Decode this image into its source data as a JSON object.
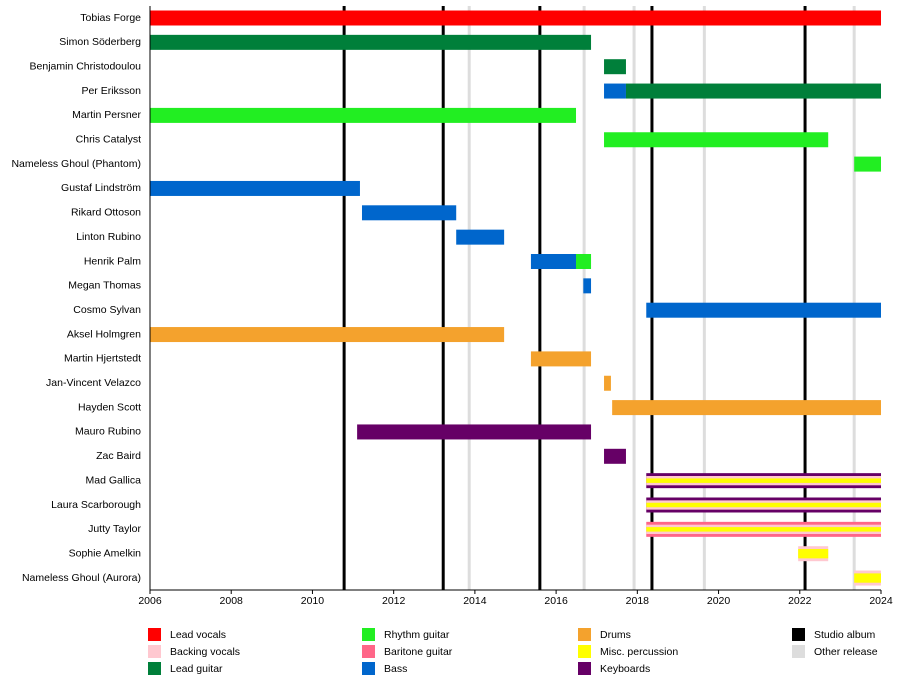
{
  "chart_data": {
    "type": "timeline",
    "xlim": [
      2006,
      2024
    ],
    "xticks": [
      2006,
      2008,
      2010,
      2012,
      2014,
      2016,
      2018,
      2020,
      2022,
      2024
    ],
    "roles": [
      {
        "name": "Lead vocals",
        "color": "#ff0000"
      },
      {
        "name": "Backing vocals",
        "color": "#ffc8d0"
      },
      {
        "name": "Lead guitar",
        "color": "#007f3a"
      },
      {
        "name": "Rhythm guitar",
        "color": "#22ee22"
      },
      {
        "name": "Baritone guitar",
        "color": "#ff6688"
      },
      {
        "name": "Bass",
        "color": "#0066cc"
      },
      {
        "name": "Drums",
        "color": "#f4a22d"
      },
      {
        "name": "Misc. percussion",
        "color": "#ffff00"
      },
      {
        "name": "Keyboards",
        "color": "#660066"
      }
    ],
    "events": [
      {
        "name": "Studio album",
        "color": "#000000",
        "dates": [
          2010.78,
          2013.22,
          2015.6,
          2018.36,
          2022.13
        ]
      },
      {
        "name": "Other release",
        "color": "#dddddd",
        "dates": [
          2013.86,
          2016.69,
          2017.92,
          2019.65,
          2023.34
        ]
      }
    ],
    "members": [
      {
        "name": "Tobias Forge",
        "bars": [
          {
            "role": "Lead vocals",
            "start": 2006,
            "end": 2024
          }
        ]
      },
      {
        "name": "Simon Söderberg",
        "bars": [
          {
            "role": "Lead guitar",
            "start": 2006,
            "end": 2016.86
          }
        ]
      },
      {
        "name": "Benjamin Christodoulou",
        "bars": [
          {
            "role": "Lead guitar",
            "start": 2017.18,
            "end": 2017.72
          }
        ]
      },
      {
        "name": "Per Eriksson",
        "bars": [
          {
            "role": "Bass",
            "start": 2017.18,
            "end": 2017.72
          },
          {
            "role": "Lead guitar",
            "start": 2017.72,
            "end": 2024
          }
        ]
      },
      {
        "name": "Martin Persner",
        "bars": [
          {
            "role": "Rhythm guitar",
            "start": 2006,
            "end": 2016.49
          }
        ]
      },
      {
        "name": "Chris Catalyst",
        "bars": [
          {
            "role": "Rhythm guitar",
            "start": 2017.18,
            "end": 2022.7
          }
        ]
      },
      {
        "name": "Nameless Ghoul (Phantom)",
        "bars": [
          {
            "role": "Rhythm guitar",
            "start": 2023.34,
            "end": 2024
          }
        ]
      },
      {
        "name": "Gustaf Lindström",
        "bars": [
          {
            "role": "Bass",
            "start": 2006,
            "end": 2011.17
          }
        ]
      },
      {
        "name": "Rikard Ottoson",
        "bars": [
          {
            "role": "Bass",
            "start": 2011.22,
            "end": 2013.54
          }
        ]
      },
      {
        "name": "Linton Rubino",
        "bars": [
          {
            "role": "Bass",
            "start": 2013.54,
            "end": 2014.72
          }
        ]
      },
      {
        "name": "Henrik Palm",
        "bars": [
          {
            "role": "Bass",
            "start": 2015.38,
            "end": 2016.49
          },
          {
            "role": "Rhythm guitar",
            "start": 2016.49,
            "end": 2016.86
          }
        ]
      },
      {
        "name": "Megan Thomas",
        "bars": [
          {
            "role": "Bass",
            "start": 2016.67,
            "end": 2016.86
          }
        ]
      },
      {
        "name": "Cosmo Sylvan",
        "bars": [
          {
            "role": "Bass",
            "start": 2018.22,
            "end": 2024
          }
        ]
      },
      {
        "name": "Aksel Holmgren",
        "bars": [
          {
            "role": "Drums",
            "start": 2006,
            "end": 2014.72
          }
        ]
      },
      {
        "name": "Martin Hjertstedt",
        "bars": [
          {
            "role": "Drums",
            "start": 2015.38,
            "end": 2016.86
          }
        ]
      },
      {
        "name": "Jan-Vincent Velazco",
        "bars": [
          {
            "role": "Drums",
            "start": 2017.18,
            "end": 2017.35
          }
        ]
      },
      {
        "name": "Hayden Scott",
        "bars": [
          {
            "role": "Drums",
            "start": 2017.38,
            "end": 2024
          }
        ]
      },
      {
        "name": "Mauro Rubino",
        "bars": [
          {
            "role": "Keyboards",
            "start": 2011.1,
            "end": 2016.86
          }
        ]
      },
      {
        "name": "Zac Baird",
        "bars": [
          {
            "role": "Keyboards",
            "start": 2017.18,
            "end": 2017.72
          }
        ]
      },
      {
        "name": "Mad Gallica",
        "bars": [
          {
            "role": "Keyboards",
            "start": 2018.22,
            "end": 2024
          },
          {
            "role": "Backing vocals",
            "start": 2018.22,
            "end": 2024
          },
          {
            "role": "Misc. percussion",
            "start": 2018.22,
            "end": 2024
          }
        ]
      },
      {
        "name": "Laura Scarborough",
        "bars": [
          {
            "role": "Keyboards",
            "start": 2018.22,
            "end": 2024
          },
          {
            "role": "Backing vocals",
            "start": 2018.22,
            "end": 2024
          },
          {
            "role": "Misc. percussion",
            "start": 2018.22,
            "end": 2024
          }
        ]
      },
      {
        "name": "Jutty Taylor",
        "bars": [
          {
            "role": "Baritone guitar",
            "start": 2018.22,
            "end": 2024
          },
          {
            "role": "Backing vocals",
            "start": 2018.22,
            "end": 2024
          },
          {
            "role": "Misc. percussion",
            "start": 2018.22,
            "end": 2024
          }
        ]
      },
      {
        "name": "Sophie Amelkin",
        "bars": [
          {
            "role": "Backing vocals",
            "start": 2021.96,
            "end": 2022.7
          },
          {
            "role": "Misc. percussion",
            "start": 2021.96,
            "end": 2022.7
          }
        ]
      },
      {
        "name": "Nameless Ghoul (Aurora)",
        "bars": [
          {
            "role": "Backing vocals",
            "start": 2023.34,
            "end": 2024
          },
          {
            "role": "Misc. percussion",
            "start": 2023.34,
            "end": 2024
          }
        ]
      }
    ]
  }
}
